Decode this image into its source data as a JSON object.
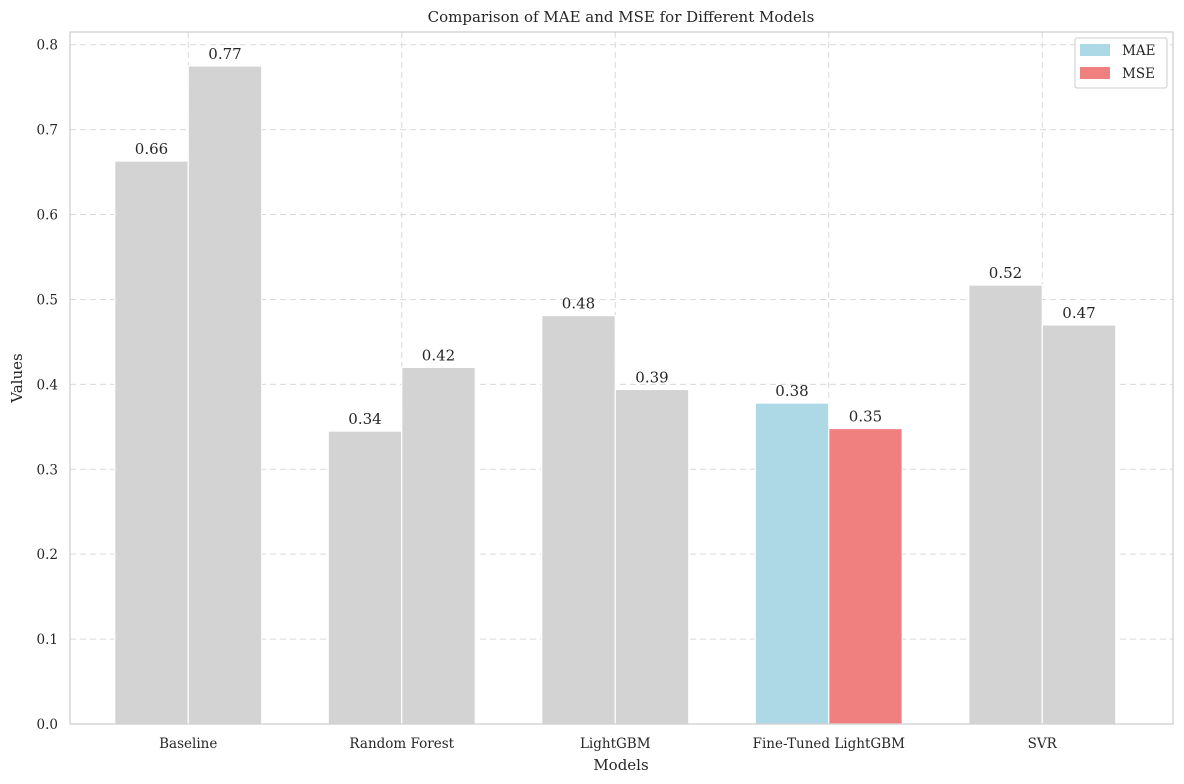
{
  "chart_data": {
    "type": "bar",
    "title": "Comparison of MAE and MSE for Different Models",
    "xlabel": "Models",
    "ylabel": "Values",
    "categories": [
      "Baseline",
      "Random Forest",
      "LightGBM",
      "Fine-Tuned LightGBM",
      "SVR"
    ],
    "series": [
      {
        "name": "MAE",
        "values": [
          0.663,
          0.345,
          0.481,
          0.378,
          0.517
        ]
      },
      {
        "name": "MSE",
        "values": [
          0.775,
          0.42,
          0.394,
          0.348,
          0.47
        ]
      }
    ],
    "value_labels": {
      "MAE": [
        "0.66",
        "0.34",
        "0.48",
        "0.38",
        "0.52"
      ],
      "MSE": [
        "0.77",
        "0.42",
        "0.39",
        "0.35",
        "0.47"
      ]
    },
    "highlight_category": "Fine-Tuned LightGBM",
    "ylim": [
      0,
      0.815
    ],
    "yticks": [
      "0.0",
      "0.1",
      "0.2",
      "0.3",
      "0.4",
      "0.5",
      "0.6",
      "0.7",
      "0.8"
    ],
    "grid": true,
    "legend_position": "top-right",
    "colors": {
      "MAE": "#add8e6",
      "MSE": "#f08080",
      "muted": "#d3d3d3",
      "grid": "#d9d9d9",
      "axis": "#cccccc"
    }
  }
}
